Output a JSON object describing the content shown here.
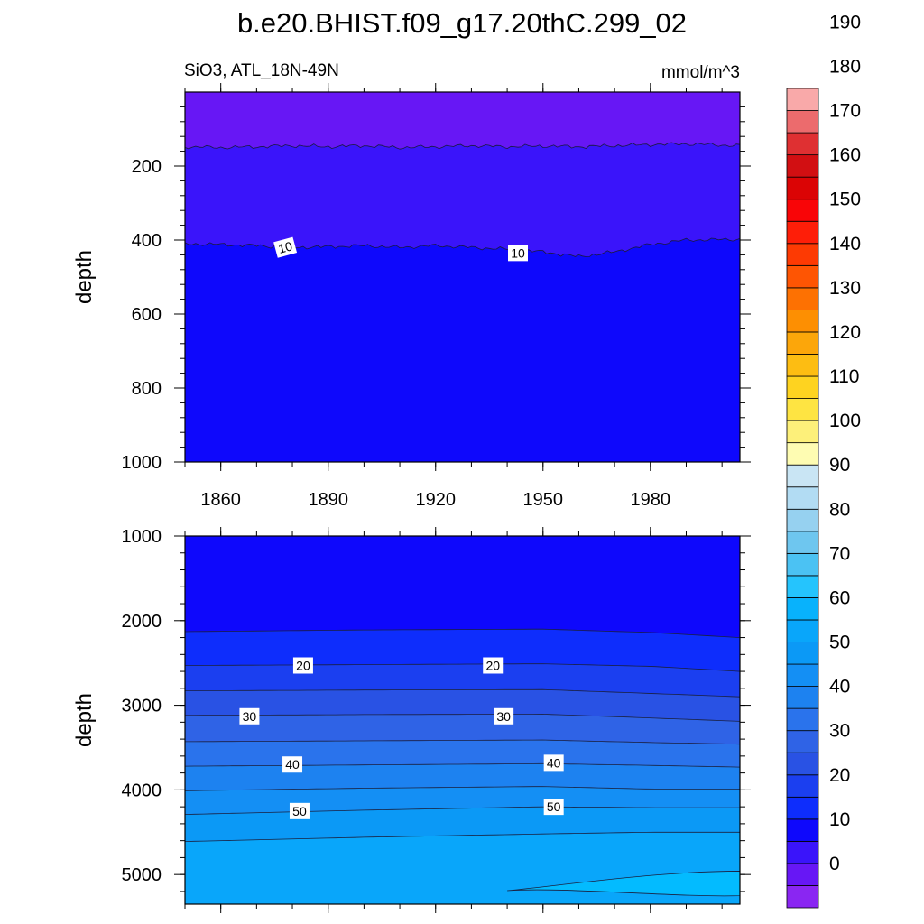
{
  "title": "b.e20.BHIST.f09_g17.20thC.299_02",
  "subtitle_left": "SiO3, ATL_18N-49N",
  "subtitle_right": "mmol/m^3",
  "chart_data": [
    {
      "type": "heatmap",
      "panel": "upper",
      "xlabel": "",
      "ylabel": "depth",
      "xlim": [
        1850,
        2005
      ],
      "ylim": [
        1000,
        0
      ],
      "xticks": [
        1860,
        1890,
        1920,
        1950,
        1980
      ],
      "yticks": [
        200,
        400,
        600,
        800,
        1000
      ],
      "years": [
        1850,
        1860,
        1870,
        1880,
        1890,
        1900,
        1910,
        1920,
        1930,
        1940,
        1950,
        1960,
        1970,
        1980,
        1990,
        2005
      ],
      "iso_5_depth": [
        148,
        150,
        148,
        145,
        148,
        145,
        150,
        148,
        145,
        148,
        146,
        148,
        145,
        142,
        140,
        145
      ],
      "iso_10_depth": [
        410,
        412,
        415,
        420,
        418,
        415,
        420,
        415,
        420,
        425,
        432,
        445,
        432,
        412,
        400,
        398
      ],
      "contour_labels": [
        {
          "text": "10",
          "year": 1878,
          "depth": 420
        },
        {
          "text": "10",
          "year": 1943,
          "depth": 435
        }
      ],
      "fills": [
        {
          "range": "0-5",
          "color": "#6717f5"
        },
        {
          "range": "5-10",
          "color": "#3a14fa"
        },
        {
          "range": "10-15",
          "color": "#0e08fc"
        }
      ]
    },
    {
      "type": "heatmap",
      "panel": "lower",
      "xlabel": "",
      "ylabel": "depth",
      "xlim": [
        1850,
        2005
      ],
      "ylim": [
        5350,
        1000
      ],
      "yticks": [
        1000,
        2000,
        3000,
        4000,
        5000
      ],
      "years": [
        1850,
        1900,
        1950,
        1980,
        2005
      ],
      "isolines": [
        {
          "value": 15,
          "depth": [
            2130,
            2110,
            2100,
            2140,
            2200
          ],
          "fill_below": "#0e2dfc"
        },
        {
          "value": 20,
          "depth": [
            2530,
            2520,
            2510,
            2540,
            2600
          ],
          "fill_below": "#1b3ff0"
        },
        {
          "value": 25,
          "depth": [
            2830,
            2820,
            2815,
            2860,
            2900
          ],
          "fill_below": "#2952e4"
        },
        {
          "value": 30,
          "depth": [
            3120,
            3110,
            3105,
            3150,
            3190
          ],
          "fill_below": "#2f63e6"
        },
        {
          "value": 35,
          "depth": [
            3430,
            3420,
            3410,
            3440,
            3460
          ],
          "fill_below": "#2a73ec"
        },
        {
          "value": 40,
          "depth": [
            3720,
            3705,
            3690,
            3710,
            3730
          ],
          "fill_below": "#1d82f0"
        },
        {
          "value": 45,
          "depth": [
            4010,
            3980,
            3960,
            3990,
            3990
          ],
          "fill_below": "#148ff4"
        },
        {
          "value": 50,
          "depth": [
            4290,
            4240,
            4200,
            4210,
            4210
          ],
          "fill_below": "#0b99f6"
        },
        {
          "value": 55,
          "depth": [
            4610,
            4560,
            4520,
            4500,
            4500
          ],
          "fill_below": "#09a6fa"
        }
      ],
      "iso_60_patch": {
        "years": [
          1940,
          2005
        ],
        "depth_range": [
          4960,
          5250
        ],
        "fill": "#03bbff"
      },
      "contour_labels": [
        {
          "text": "20",
          "year": 1883,
          "depth": 2530
        },
        {
          "text": "20",
          "year": 1936,
          "depth": 2530
        },
        {
          "text": "30",
          "year": 1868,
          "depth": 3130
        },
        {
          "text": "30",
          "year": 1939,
          "depth": 3130
        },
        {
          "text": "40",
          "year": 1880,
          "depth": 3700
        },
        {
          "text": "40",
          "year": 1953,
          "depth": 3680
        },
        {
          "text": "50",
          "year": 1882,
          "depth": 4250
        },
        {
          "text": "50",
          "year": 1953,
          "depth": 4200
        }
      ]
    }
  ],
  "colorbar": {
    "levels": [
      -5,
      0,
      5,
      10,
      15,
      20,
      25,
      30,
      35,
      40,
      45,
      50,
      55,
      60,
      65,
      70,
      75,
      80,
      85,
      90,
      95,
      100,
      105,
      110,
      115,
      120,
      125,
      130,
      135,
      140,
      145,
      150,
      155,
      160,
      165,
      170,
      175,
      180,
      185,
      190,
      195
    ],
    "colors": [
      "#8a26f2",
      "#6717f5",
      "#3a14fa",
      "#0e08fc",
      "#0e2dfc",
      "#1b3ff0",
      "#2952e4",
      "#2f63e6",
      "#2a73ec",
      "#1d82f0",
      "#148ff4",
      "#0b99f6",
      "#09a6fa",
      "#08b2fc",
      "#25c4fd",
      "#4bc2f3",
      "#6ec6ef",
      "#96d1f0",
      "#b2dcf3",
      "#c9e5f4",
      "#fefcb2",
      "#fdf07a",
      "#fee442",
      "#fed320",
      "#fdbd12",
      "#fca60a",
      "#fd8f02",
      "#fd7102",
      "#fe5503",
      "#fd3a03",
      "#fe1e08",
      "#f90507",
      "#db0405",
      "#d20f12",
      "#df3032",
      "#ec6b6d",
      "#f9a9a9"
    ],
    "labels": [
      "0",
      "10",
      "20",
      "30",
      "40",
      "50",
      "60",
      "70",
      "80",
      "90",
      "100",
      "110",
      "120",
      "130",
      "140",
      "150",
      "160",
      "170",
      "180",
      "190"
    ]
  }
}
